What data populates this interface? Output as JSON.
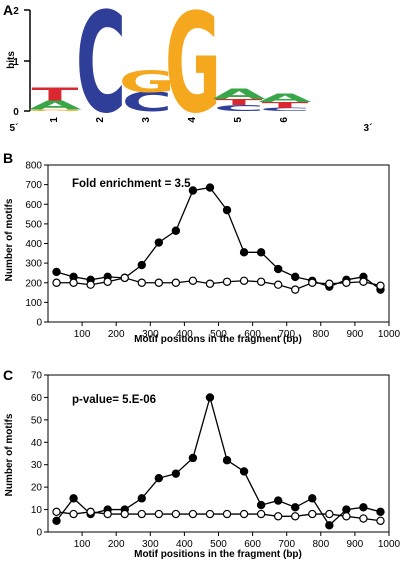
{
  "panels": {
    "a": "A",
    "b": "B",
    "c": "C"
  },
  "logo": {
    "ylabel": "bits",
    "yticks": [
      "0",
      "1",
      "2"
    ],
    "five_prime": "5´",
    "three_prime": "3´",
    "positions": [
      "1",
      "2",
      "3",
      "4",
      "5",
      "6"
    ],
    "colors": {
      "A": "#3aa64a",
      "C": "#2f3f99",
      "G": "#f5a81d",
      "T": "#d9282f"
    },
    "letters": [
      [
        [
          "G",
          0.03
        ],
        [
          "A",
          0.18
        ],
        [
          "T",
          0.26
        ]
      ],
      [
        [
          "C",
          2.0
        ]
      ],
      [
        [
          "C",
          0.38
        ],
        [
          "G",
          0.42
        ]
      ],
      [
        [
          "G",
          1.98
        ]
      ],
      [
        [
          "C",
          0.12
        ],
        [
          "T",
          0.12
        ],
        [
          "A",
          0.2
        ]
      ],
      [
        [
          "C",
          0.06
        ],
        [
          "T",
          0.12
        ],
        [
          "A",
          0.16
        ]
      ]
    ]
  },
  "chart_data": [
    {
      "type": "line",
      "annotation": "Fold  enrichment = 3.5",
      "xlabel": "Motif positions  in the fragment (bp)",
      "ylabel": "Number of motifs",
      "xlim": [
        0,
        1000
      ],
      "ylim": [
        0,
        800
      ],
      "xticks": [
        100,
        200,
        300,
        400,
        500,
        600,
        700,
        800,
        900,
        1000
      ],
      "yticks": [
        0,
        100,
        200,
        300,
        400,
        500,
        600,
        700,
        800
      ],
      "x": [
        25,
        75,
        125,
        175,
        225,
        275,
        325,
        375,
        425,
        475,
        525,
        575,
        625,
        675,
        725,
        775,
        825,
        875,
        925,
        975
      ],
      "series": [
        {
          "marker": "filled",
          "values": [
            255,
            230,
            215,
            230,
            225,
            290,
            405,
            465,
            670,
            685,
            570,
            355,
            355,
            270,
            230,
            210,
            180,
            215,
            230,
            165
          ]
        },
        {
          "marker": "open",
          "values": [
            200,
            200,
            190,
            205,
            225,
            200,
            200,
            200,
            210,
            195,
            205,
            210,
            205,
            190,
            165,
            200,
            195,
            200,
            205,
            185
          ]
        }
      ]
    },
    {
      "type": "line",
      "annotation": "p-value= 5.E-06",
      "xlabel": "Motif positions  in the fragment (bp)",
      "ylabel": "Number of motifs",
      "xlim": [
        0,
        1000
      ],
      "ylim": [
        0,
        70
      ],
      "xticks": [
        100,
        200,
        300,
        400,
        500,
        600,
        700,
        800,
        900,
        1000
      ],
      "yticks": [
        0,
        10,
        20,
        30,
        40,
        50,
        60,
        70
      ],
      "x": [
        25,
        75,
        125,
        175,
        225,
        275,
        325,
        375,
        425,
        475,
        525,
        575,
        625,
        675,
        725,
        775,
        825,
        875,
        925,
        975
      ],
      "series": [
        {
          "marker": "filled",
          "values": [
            5,
            15,
            8,
            10,
            10,
            15,
            24,
            26,
            33,
            60,
            32,
            27,
            12,
            14,
            11,
            15,
            3,
            10,
            11,
            9
          ]
        },
        {
          "marker": "open",
          "values": [
            9,
            8,
            9,
            8,
            8,
            8,
            8,
            8,
            8,
            8,
            8,
            8,
            8,
            7,
            7,
            8,
            8,
            7,
            6,
            5
          ]
        }
      ]
    }
  ]
}
